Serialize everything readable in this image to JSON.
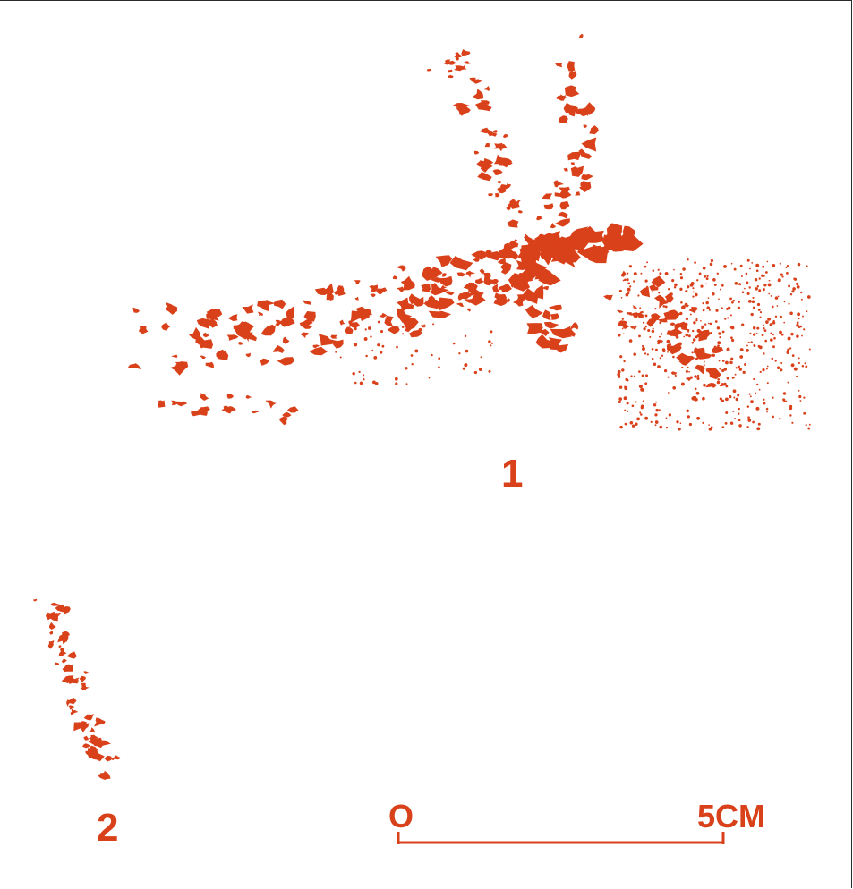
{
  "colors": {
    "paint": "#d9411b",
    "background": "#ffffff",
    "frame": "#2a2a2a"
  },
  "figures": [
    {
      "id": "1",
      "label": "1"
    },
    {
      "id": "2",
      "label": "2"
    }
  ],
  "scale_bar": {
    "start_label": "O",
    "end_label": "5CM",
    "length_cm": 5
  }
}
